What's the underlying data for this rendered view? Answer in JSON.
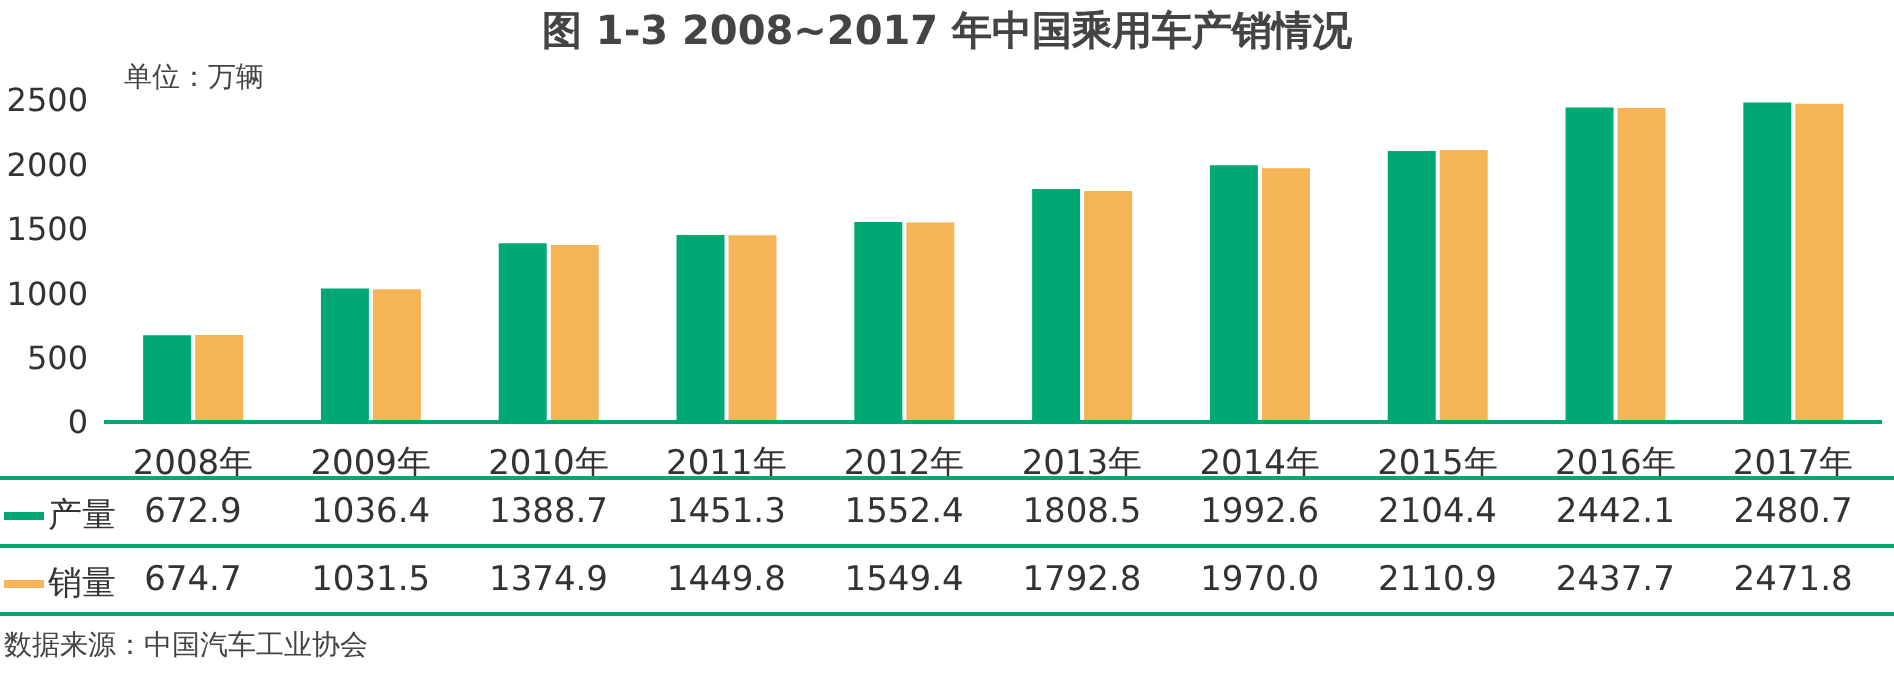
{
  "chart_data": {
    "type": "bar",
    "title": "图 1-3  2008~2017 年中国乘用车产销情况",
    "ylabel": "单位：万辆",
    "categories": [
      "2008年",
      "2009年",
      "2010年",
      "2011年",
      "2012年",
      "2013年",
      "2014年",
      "2015年",
      "2016年",
      "2017年"
    ],
    "series": [
      {
        "name": "产量",
        "color": "#00a874",
        "values": [
          672.9,
          1036.4,
          1388.7,
          1451.3,
          1552.4,
          1808.5,
          1992.6,
          2104.4,
          2442.1,
          2480.7
        ],
        "value_labels": [
          "672.9",
          "1036.4",
          "1388.7",
          "1451.3",
          "1552.4",
          "1808.5",
          "1992.6",
          "2104.4",
          "2442.1",
          "2480.7"
        ]
      },
      {
        "name": "销量",
        "color": "#f5b556",
        "values": [
          674.7,
          1031.5,
          1374.9,
          1449.8,
          1549.4,
          1792.8,
          1970.0,
          2110.9,
          2437.7,
          2471.8
        ],
        "value_labels": [
          "674.7",
          "1031.5",
          "1374.9",
          "1449.8",
          "1549.4",
          "1792.8",
          "1970.0",
          "2110.9",
          "2437.7",
          "2471.8"
        ]
      }
    ],
    "ylim": [
      0,
      2500
    ],
    "yticks": [
      0,
      500,
      1000,
      1500,
      2000,
      2500
    ],
    "grid": false,
    "legend": "bottom",
    "annotations": [
      "数据来源：中国汽车工业协会"
    ]
  }
}
